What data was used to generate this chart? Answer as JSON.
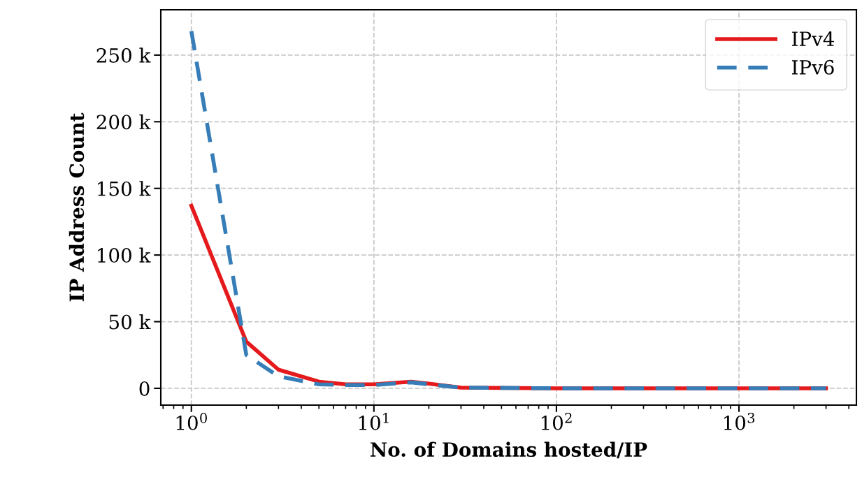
{
  "chart_data": {
    "type": "line",
    "xlabel": "No. of Domains hosted/IP",
    "ylabel": "IP Address Count",
    "log": "x",
    "series": [
      {
        "name": "IPv4",
        "color": "#e41a1c",
        "line_style": "solid",
        "x": [
          1,
          2,
          3,
          5,
          7,
          10,
          16,
          20,
          30,
          100,
          1000,
          3000
        ],
        "values": [
          137000,
          35000,
          14000,
          5000,
          3000,
          3000,
          5000,
          3500,
          500,
          0,
          0,
          0
        ]
      },
      {
        "name": "IPv6",
        "color": "#377eb8",
        "line_style": "dashed",
        "x": [
          1,
          2,
          3,
          5,
          7,
          10,
          16,
          20,
          30,
          100,
          1000,
          3000
        ],
        "values": [
          268000,
          25000,
          9000,
          3000,
          2500,
          2500,
          4500,
          3000,
          500,
          0,
          0,
          0
        ]
      }
    ],
    "xlim": [
      0.68,
      4400
    ],
    "ylim": [
      -12600,
      284000
    ],
    "xticks": [
      {
        "value": 1,
        "label": "10$^{0}$"
      },
      {
        "value": 10,
        "label": "10$^{1}$"
      },
      {
        "value": 100,
        "label": "10$^{2}$"
      },
      {
        "value": 1000,
        "label": "10$^{3}$"
      }
    ],
    "yticks": [
      {
        "value": 0,
        "label": "0"
      },
      {
        "value": 50000,
        "label": "50 k"
      },
      {
        "value": 100000,
        "label": "100 k"
      },
      {
        "value": 150000,
        "label": "150 k"
      },
      {
        "value": 200000,
        "label": "200 k"
      },
      {
        "value": 250000,
        "label": "250 k"
      }
    ],
    "grid": true,
    "legend": "top right"
  }
}
